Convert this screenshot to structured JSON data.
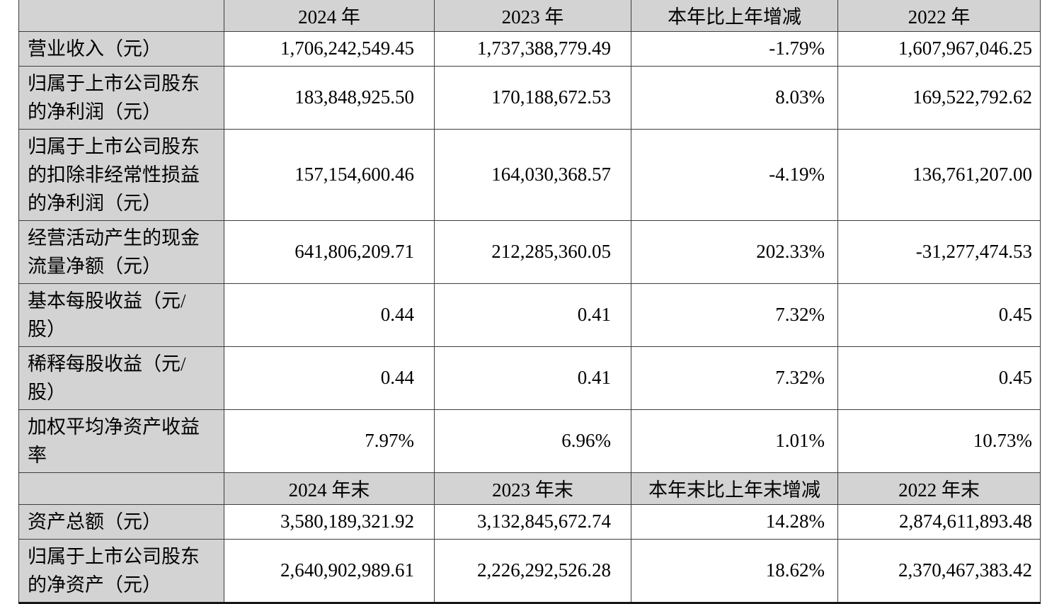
{
  "colors": {
    "cell_fill_grey": "#d3d3d3",
    "grid_line": "#3e3e3e",
    "bottom_rule": "#161616",
    "text": "#000000",
    "background": "#ffffff"
  },
  "table": {
    "header1": {
      "cells": [
        "",
        "2024 年",
        "2023 年",
        "本年比上年增减",
        "2022 年"
      ]
    },
    "rows1": [
      {
        "label": "营业收入（元）",
        "values": [
          "1,706,242,549.45",
          "1,737,388,779.49",
          "-1.79%",
          "1,607,967,046.25"
        ]
      },
      {
        "label": "归属于上市公司股东\n的净利润（元）",
        "values": [
          "183,848,925.50",
          "170,188,672.53",
          "8.03%",
          "169,522,792.62"
        ]
      },
      {
        "label": "归属于上市公司股东\n的扣除非经常性损益\n的净利润（元）",
        "values": [
          "157,154,600.46",
          "164,030,368.57",
          "-4.19%",
          "136,761,207.00"
        ]
      },
      {
        "label": "经营活动产生的现金\n流量净额（元）",
        "values": [
          "641,806,209.71",
          "212,285,360.05",
          "202.33%",
          "-31,277,474.53"
        ]
      },
      {
        "label": "基本每股收益（元/\n股）",
        "values": [
          "0.44",
          "0.41",
          "7.32%",
          "0.45"
        ]
      },
      {
        "label": "稀释每股收益（元/\n股）",
        "values": [
          "0.44",
          "0.41",
          "7.32%",
          "0.45"
        ]
      },
      {
        "label": "加权平均净资产收益\n率",
        "values": [
          "7.97%",
          "6.96%",
          "1.01%",
          "10.73%"
        ]
      }
    ],
    "header2": {
      "cells": [
        "",
        "2024 年末",
        "2023 年末",
        "本年末比上年末增减",
        "2022 年末"
      ]
    },
    "rows2": [
      {
        "label": "资产总额（元）",
        "values": [
          "3,580,189,321.92",
          "3,132,845,672.74",
          "14.28%",
          "2,874,611,893.48"
        ]
      },
      {
        "label": "归属于上市公司股东\n的净资产（元）",
        "values": [
          "2,640,902,989.61",
          "2,226,292,526.28",
          "18.62%",
          "2,370,467,383.42"
        ]
      }
    ]
  }
}
